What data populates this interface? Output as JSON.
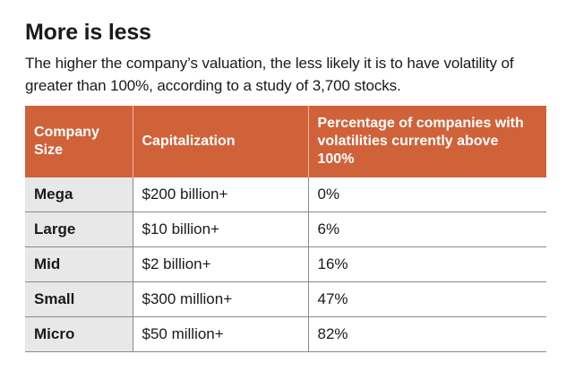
{
  "title": "More is less",
  "subtitle": "The higher the company’s valuation, the less likely it is to have volatility of greater than 100%, according to a study of 3,700 stocks.",
  "colors": {
    "header_bg": "#d0623a",
    "first_col_bg": "#e8e8e8"
  },
  "chart_data": {
    "type": "table",
    "columns": [
      "Company Size",
      "Capitalization",
      "Percentage of companies with volatilities currently above 100%"
    ],
    "rows": [
      {
        "size": "Mega",
        "capitalization": "$200 billion+",
        "percentage": "0%"
      },
      {
        "size": "Large",
        "capitalization": "$10 billion+",
        "percentage": "6%"
      },
      {
        "size": "Mid",
        "capitalization": "$2 billion+",
        "percentage": "16%"
      },
      {
        "size": "Small",
        "capitalization": "$300 million+",
        "percentage": "47%"
      },
      {
        "size": "Micro",
        "capitalization": "$50 million+",
        "percentage": "82%"
      }
    ]
  }
}
